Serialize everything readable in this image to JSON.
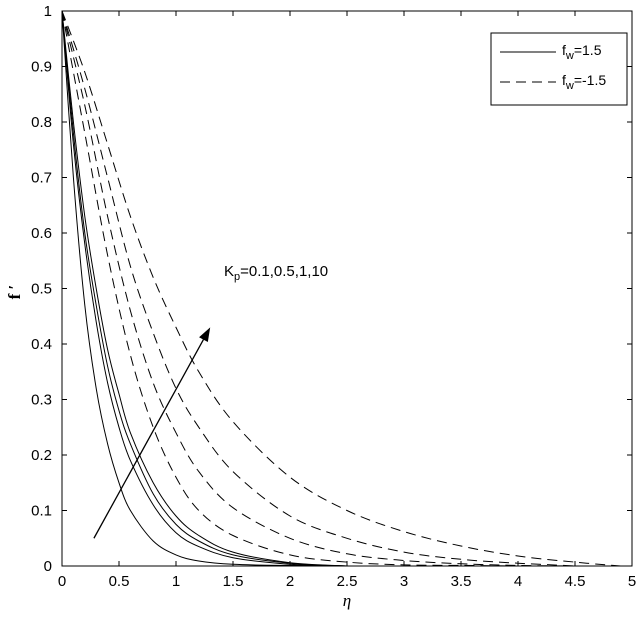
{
  "chart_data": {
    "type": "line",
    "title": "",
    "xlabel": "η",
    "ylabel": "f ′",
    "xlim": [
      0,
      5
    ],
    "ylim": [
      0,
      1
    ],
    "xticks": [
      0,
      0.5,
      1,
      1.5,
      2,
      2.5,
      3,
      3.5,
      4,
      4.5,
      5
    ],
    "yticks": [
      0,
      0.1,
      0.2,
      0.3,
      0.4,
      0.5,
      0.6,
      0.7,
      0.8,
      0.9,
      1
    ],
    "grid": false,
    "legend": {
      "placement": "top-right",
      "entries": [
        {
          "base": "f",
          "sub": "w",
          "rest": "=1.5",
          "style": "solid"
        },
        {
          "base": "f",
          "sub": "w",
          "rest": "=-1.5",
          "style": "dashed"
        }
      ]
    },
    "annotation": {
      "base": "K",
      "sub": "p",
      "rest": "=0.1,0.5,1,10",
      "arrow_from": [
        0.28,
        0.05
      ],
      "arrow_to": [
        1.3,
        0.43
      ]
    },
    "series": [
      {
        "group": "fw=1.5",
        "style": "solid",
        "x": [
          0,
          0.1,
          0.2,
          0.3,
          0.4,
          0.5,
          0.6,
          0.8,
          1.0,
          1.2,
          1.5,
          2.0,
          2.5
        ],
        "y": [
          1,
          0.7,
          0.47,
          0.32,
          0.22,
          0.15,
          0.1,
          0.045,
          0.02,
          0.009,
          0.003,
          0.001,
          0
        ]
      },
      {
        "group": "fw=1.5",
        "style": "solid",
        "x": [
          0,
          0.1,
          0.2,
          0.3,
          0.4,
          0.5,
          0.6,
          0.8,
          1.0,
          1.2,
          1.5,
          2.0,
          2.5
        ],
        "y": [
          1,
          0.76,
          0.58,
          0.44,
          0.33,
          0.25,
          0.19,
          0.11,
          0.06,
          0.035,
          0.015,
          0.003,
          0
        ]
      },
      {
        "group": "fw=1.5",
        "style": "solid",
        "x": [
          0,
          0.1,
          0.2,
          0.3,
          0.4,
          0.5,
          0.6,
          0.8,
          1.0,
          1.2,
          1.5,
          2.0,
          2.5
        ],
        "y": [
          1,
          0.78,
          0.6,
          0.47,
          0.36,
          0.28,
          0.22,
          0.13,
          0.075,
          0.045,
          0.02,
          0.005,
          0
        ]
      },
      {
        "group": "fw=1.5",
        "style": "solid",
        "x": [
          0,
          0.1,
          0.2,
          0.3,
          0.4,
          0.5,
          0.6,
          0.8,
          1.0,
          1.2,
          1.5,
          2.0,
          2.5
        ],
        "y": [
          1,
          0.8,
          0.63,
          0.5,
          0.39,
          0.31,
          0.24,
          0.15,
          0.09,
          0.055,
          0.025,
          0.006,
          0
        ]
      },
      {
        "group": "fw=-1.5",
        "style": "dashed",
        "x": [
          0,
          0.2,
          0.4,
          0.6,
          0.8,
          1.0,
          1.2,
          1.5,
          2.0,
          2.5,
          3.0,
          3.5,
          4.0
        ],
        "y": [
          1,
          0.78,
          0.56,
          0.38,
          0.25,
          0.16,
          0.1,
          0.055,
          0.02,
          0.007,
          0.002,
          0.001,
          0
        ]
      },
      {
        "group": "fw=-1.5",
        "style": "dashed",
        "x": [
          0,
          0.2,
          0.4,
          0.6,
          0.8,
          1.0,
          1.2,
          1.5,
          2.0,
          2.5,
          3.0,
          3.5,
          4.0,
          4.5
        ],
        "y": [
          1,
          0.83,
          0.63,
          0.46,
          0.33,
          0.24,
          0.17,
          0.105,
          0.05,
          0.022,
          0.01,
          0.004,
          0.001,
          0
        ]
      },
      {
        "group": "fw=-1.5",
        "style": "dashed",
        "x": [
          0,
          0.2,
          0.4,
          0.6,
          0.8,
          1.0,
          1.2,
          1.5,
          2.0,
          2.5,
          3.0,
          3.5,
          4.0,
          4.5
        ],
        "y": [
          1,
          0.86,
          0.7,
          0.54,
          0.42,
          0.32,
          0.25,
          0.17,
          0.09,
          0.05,
          0.025,
          0.012,
          0.005,
          0
        ]
      },
      {
        "group": "fw=-1.5",
        "style": "dashed",
        "x": [
          0,
          0.2,
          0.4,
          0.6,
          0.8,
          1.0,
          1.2,
          1.5,
          2.0,
          2.5,
          3.0,
          3.5,
          4.0,
          4.5,
          4.9
        ],
        "y": [
          1,
          0.89,
          0.76,
          0.63,
          0.52,
          0.43,
          0.35,
          0.26,
          0.16,
          0.1,
          0.062,
          0.036,
          0.018,
          0.007,
          0
        ]
      }
    ]
  }
}
